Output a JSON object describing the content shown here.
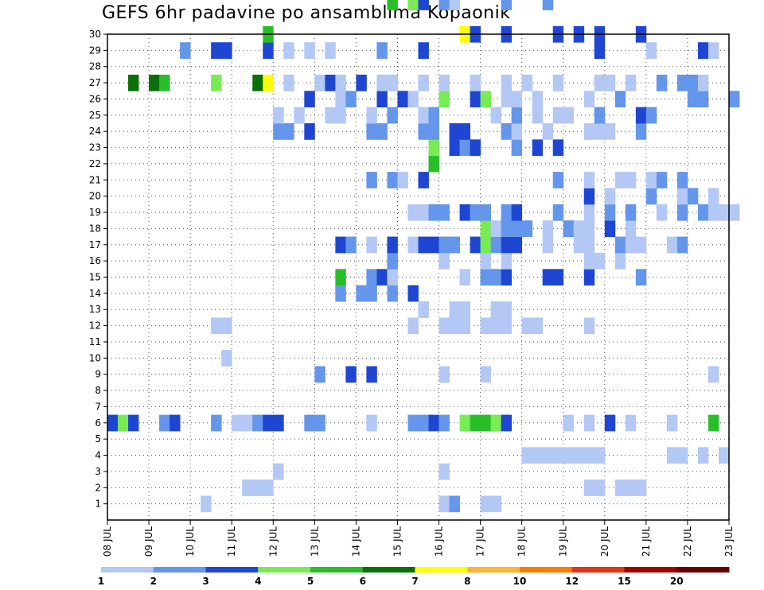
{
  "chart_data": {
    "type": "heatmap",
    "title": "GEFS 6hr padavine po ansamblima Kopaonik",
    "xlabel": "",
    "ylabel": "",
    "x_tick_labels": [
      "08 JUL",
      "09 JUL",
      "10 JUL",
      "11 JUL",
      "12 JUL",
      "13 JUL",
      "14 JUL",
      "15 JUL",
      "16 JUL",
      "17 JUL",
      "18 JUL",
      "19 JUL",
      "20 JUL",
      "21 JUL",
      "22 JUL",
      "23 JUL"
    ],
    "y_tick_labels": [
      "1",
      "2",
      "3",
      "4",
      "5",
      "6",
      "7",
      "8",
      "9",
      "10",
      "11",
      "12",
      "13",
      "14",
      "15",
      "16",
      "17",
      "18",
      "19",
      "20",
      "21",
      "22",
      "23",
      "24",
      "25",
      "26",
      "27",
      "28",
      "29",
      "30"
    ],
    "ylim": [
      0,
      30
    ],
    "x_days_range": [
      8,
      23
    ],
    "grid": "dotted",
    "colorbar": {
      "placement": "bottom",
      "levels": [
        1,
        2,
        3,
        4,
        5,
        6,
        7,
        8,
        10,
        12,
        15,
        20
      ],
      "tick_labels": [
        "1",
        "2",
        "3",
        "4",
        "5",
        "6",
        "7",
        "8",
        "10",
        "12",
        "15",
        "20"
      ],
      "colors": [
        "#b4c8f5",
        "#6496eb",
        "#1e46d2",
        "#78eb55",
        "#28be28",
        "#0a700a",
        "#ffff00",
        "#ffb432",
        "#ff7800",
        "#e63214",
        "#a00000",
        "#640000"
      ]
    },
    "cells": [
      [
        10.25,
        1,
        1
      ],
      [
        16,
        1,
        1
      ],
      [
        16.25,
        1,
        2
      ],
      [
        17,
        1,
        1
      ],
      [
        17.25,
        1,
        1
      ],
      [
        11.25,
        2,
        1
      ],
      [
        11.5,
        2,
        1
      ],
      [
        11.75,
        2,
        1
      ],
      [
        19.5,
        2,
        1
      ],
      [
        19.75,
        2,
        1
      ],
      [
        20.25,
        2,
        1
      ],
      [
        20.5,
        2,
        1
      ],
      [
        20.75,
        2,
        1
      ],
      [
        12,
        3,
        1
      ],
      [
        16,
        3,
        1
      ],
      [
        18,
        4,
        1
      ],
      [
        18.25,
        4,
        1
      ],
      [
        18.5,
        4,
        1
      ],
      [
        18.75,
        4,
        1
      ],
      [
        19,
        4,
        1
      ],
      [
        19.25,
        4,
        1
      ],
      [
        19.5,
        4,
        1
      ],
      [
        19.75,
        4,
        1
      ],
      [
        21.5,
        4,
        1
      ],
      [
        21.75,
        4,
        1
      ],
      [
        22.25,
        4,
        1
      ],
      [
        22.75,
        4,
        1
      ],
      [
        8,
        6,
        3
      ],
      [
        8.25,
        6,
        4
      ],
      [
        8.5,
        6,
        3
      ],
      [
        9.25,
        6,
        2
      ],
      [
        9.5,
        6,
        3
      ],
      [
        10.5,
        6,
        2
      ],
      [
        11,
        6,
        1
      ],
      [
        11.25,
        6,
        1
      ],
      [
        11.5,
        6,
        2
      ],
      [
        11.75,
        6,
        3
      ],
      [
        12,
        6,
        3
      ],
      [
        12.75,
        6,
        2
      ],
      [
        13,
        6,
        2
      ],
      [
        14.25,
        6,
        1
      ],
      [
        15.25,
        6,
        2
      ],
      [
        15.5,
        6,
        2
      ],
      [
        15.75,
        6,
        3
      ],
      [
        16,
        6,
        2
      ],
      [
        16.5,
        6,
        4
      ],
      [
        16.75,
        6,
        5
      ],
      [
        17,
        6,
        5
      ],
      [
        17.25,
        6,
        4
      ],
      [
        17.5,
        6,
        3
      ],
      [
        19,
        6,
        1
      ],
      [
        19.5,
        6,
        1
      ],
      [
        20,
        6,
        3
      ],
      [
        20.5,
        6,
        1
      ],
      [
        21.5,
        6,
        1
      ],
      [
        22.5,
        6,
        5
      ],
      [
        13,
        9,
        2
      ],
      [
        13.75,
        9,
        3
      ],
      [
        14.25,
        9,
        3
      ],
      [
        16,
        9,
        1
      ],
      [
        17,
        9,
        1
      ],
      [
        22.5,
        9,
        1
      ],
      [
        10.75,
        10,
        1
      ],
      [
        10.5,
        12,
        1
      ],
      [
        10.75,
        12,
        1
      ],
      [
        15.25,
        12,
        1
      ],
      [
        16,
        12,
        1
      ],
      [
        16.25,
        12,
        1
      ],
      [
        16.5,
        12,
        1
      ],
      [
        17,
        12,
        1
      ],
      [
        17.25,
        12,
        1
      ],
      [
        17.5,
        12,
        1
      ],
      [
        18,
        12,
        1
      ],
      [
        18.25,
        12,
        1
      ],
      [
        19.5,
        12,
        1
      ],
      [
        15.5,
        13,
        1
      ],
      [
        16.25,
        13,
        1
      ],
      [
        16.5,
        13,
        1
      ],
      [
        17.25,
        13,
        1
      ],
      [
        17.5,
        13,
        1
      ],
      [
        13.5,
        14,
        2
      ],
      [
        14,
        14,
        2
      ],
      [
        14.25,
        14,
        2
      ],
      [
        14.75,
        14,
        2
      ],
      [
        15.25,
        14,
        3
      ],
      [
        13.5,
        15,
        5
      ],
      [
        14.25,
        15,
        2
      ],
      [
        14.5,
        15,
        3
      ],
      [
        14.75,
        15,
        1
      ],
      [
        16.5,
        15,
        1
      ],
      [
        17,
        15,
        2
      ],
      [
        17.25,
        15,
        2
      ],
      [
        17.5,
        15,
        3
      ],
      [
        18.5,
        15,
        3
      ],
      [
        18.75,
        15,
        3
      ],
      [
        19.5,
        15,
        3
      ],
      [
        20.75,
        15,
        2
      ],
      [
        14.75,
        16,
        2
      ],
      [
        16,
        16,
        1
      ],
      [
        17,
        16,
        1
      ],
      [
        17.5,
        16,
        1
      ],
      [
        19.5,
        16,
        1
      ],
      [
        19.75,
        16,
        1
      ],
      [
        20.25,
        16,
        1
      ],
      [
        13.5,
        17,
        3
      ],
      [
        13.75,
        17,
        2
      ],
      [
        14.25,
        17,
        1
      ],
      [
        14.75,
        17,
        3
      ],
      [
        15.25,
        17,
        1
      ],
      [
        15.5,
        17,
        3
      ],
      [
        15.75,
        17,
        3
      ],
      [
        16,
        17,
        2
      ],
      [
        16.25,
        17,
        2
      ],
      [
        16.75,
        17,
        3
      ],
      [
        17,
        17,
        4
      ],
      [
        17.25,
        17,
        2
      ],
      [
        17.5,
        17,
        3
      ],
      [
        17.75,
        17,
        3
      ],
      [
        18.5,
        17,
        1
      ],
      [
        19.25,
        17,
        1
      ],
      [
        19.5,
        17,
        1
      ],
      [
        20.25,
        17,
        2
      ],
      [
        20.5,
        17,
        1
      ],
      [
        20.75,
        17,
        1
      ],
      [
        21.5,
        17,
        1
      ],
      [
        21.75,
        17,
        2
      ],
      [
        17,
        18,
        4
      ],
      [
        17.25,
        18,
        1
      ],
      [
        17.5,
        18,
        2
      ],
      [
        17.75,
        18,
        2
      ],
      [
        18,
        18,
        2
      ],
      [
        18.5,
        18,
        1
      ],
      [
        19,
        18,
        2
      ],
      [
        19.25,
        18,
        1
      ],
      [
        19.5,
        18,
        1
      ],
      [
        20,
        18,
        3
      ],
      [
        20.5,
        18,
        1
      ],
      [
        15.25,
        19,
        1
      ],
      [
        15.5,
        19,
        1
      ],
      [
        15.75,
        19,
        2
      ],
      [
        16,
        19,
        2
      ],
      [
        16.5,
        19,
        3
      ],
      [
        16.75,
        19,
        2
      ],
      [
        17,
        19,
        2
      ],
      [
        17.5,
        19,
        2
      ],
      [
        17.75,
        19,
        3
      ],
      [
        18.75,
        19,
        2
      ],
      [
        19.5,
        19,
        1
      ],
      [
        20,
        19,
        2
      ],
      [
        20.5,
        19,
        2
      ],
      [
        21.25,
        19,
        1
      ],
      [
        21.75,
        19,
        2
      ],
      [
        22.25,
        19,
        2
      ],
      [
        22.5,
        19,
        1
      ],
      [
        22.75,
        19,
        1
      ],
      [
        23,
        19,
        1
      ],
      [
        19.5,
        20,
        3
      ],
      [
        20,
        20,
        1
      ],
      [
        21,
        20,
        2
      ],
      [
        21.75,
        20,
        1
      ],
      [
        22,
        20,
        2
      ],
      [
        22.5,
        20,
        1
      ],
      [
        14.25,
        21,
        2
      ],
      [
        14.75,
        21,
        2
      ],
      [
        15,
        21,
        1
      ],
      [
        15.5,
        21,
        3
      ],
      [
        18.75,
        21,
        2
      ],
      [
        19.5,
        21,
        1
      ],
      [
        20.25,
        21,
        1
      ],
      [
        20.5,
        21,
        1
      ],
      [
        21,
        21,
        1
      ],
      [
        21.25,
        21,
        2
      ],
      [
        21.75,
        21,
        2
      ],
      [
        15.75,
        22,
        5
      ],
      [
        15.75,
        23,
        4
      ],
      [
        16.25,
        23,
        3
      ],
      [
        16.5,
        23,
        2
      ],
      [
        16.75,
        23,
        3
      ],
      [
        17.75,
        23,
        2
      ],
      [
        18.25,
        23,
        3
      ],
      [
        18.75,
        23,
        3
      ],
      [
        12,
        24,
        2
      ],
      [
        12.25,
        24,
        2
      ],
      [
        12.75,
        24,
        3
      ],
      [
        14.25,
        24,
        2
      ],
      [
        14.5,
        24,
        2
      ],
      [
        15.5,
        24,
        2
      ],
      [
        15.75,
        24,
        2
      ],
      [
        16.25,
        24,
        3
      ],
      [
        16.5,
        24,
        3
      ],
      [
        17.5,
        24,
        2
      ],
      [
        17.75,
        24,
        1
      ],
      [
        18.5,
        24,
        1
      ],
      [
        19.5,
        24,
        1
      ],
      [
        19.75,
        24,
        1
      ],
      [
        20,
        24,
        1
      ],
      [
        20.75,
        24,
        2
      ],
      [
        12,
        25,
        1
      ],
      [
        12.5,
        25,
        1
      ],
      [
        13.25,
        25,
        1
      ],
      [
        13.5,
        25,
        1
      ],
      [
        14.25,
        25,
        1
      ],
      [
        14.75,
        25,
        2
      ],
      [
        15.5,
        25,
        1
      ],
      [
        15.75,
        25,
        2
      ],
      [
        17.25,
        25,
        1
      ],
      [
        17.75,
        25,
        2
      ],
      [
        18.25,
        25,
        1
      ],
      [
        18.75,
        25,
        1
      ],
      [
        19,
        25,
        1
      ],
      [
        19.75,
        25,
        2
      ],
      [
        20.75,
        25,
        3
      ],
      [
        21,
        25,
        2
      ],
      [
        12.75,
        26,
        3
      ],
      [
        13.5,
        26,
        1
      ],
      [
        13.75,
        26,
        2
      ],
      [
        14.5,
        26,
        3
      ],
      [
        15,
        26,
        3
      ],
      [
        15.25,
        26,
        1
      ],
      [
        16,
        26,
        4
      ],
      [
        16.75,
        26,
        3
      ],
      [
        17,
        26,
        4
      ],
      [
        17.5,
        26,
        1
      ],
      [
        17.75,
        26,
        1
      ],
      [
        18.25,
        26,
        1
      ],
      [
        19.5,
        26,
        1
      ],
      [
        20.25,
        26,
        2
      ],
      [
        22,
        26,
        2
      ],
      [
        22.25,
        26,
        2
      ],
      [
        23,
        26,
        2
      ],
      [
        8.5,
        27,
        6
      ],
      [
        9,
        27,
        6
      ],
      [
        9.25,
        27,
        5
      ],
      [
        10.5,
        27,
        4
      ],
      [
        11.5,
        27,
        6
      ],
      [
        11.75,
        27,
        7
      ],
      [
        12.25,
        27,
        1
      ],
      [
        13,
        27,
        1
      ],
      [
        13.25,
        27,
        3
      ],
      [
        13.5,
        27,
        1
      ],
      [
        14,
        27,
        3
      ],
      [
        14.5,
        27,
        1
      ],
      [
        14.75,
        27,
        1
      ],
      [
        15.5,
        27,
        1
      ],
      [
        16,
        27,
        1
      ],
      [
        16.75,
        27,
        1
      ],
      [
        17.5,
        27,
        1
      ],
      [
        18,
        27,
        1
      ],
      [
        18.75,
        27,
        1
      ],
      [
        19.75,
        27,
        1
      ],
      [
        20,
        27,
        1
      ],
      [
        20.5,
        27,
        1
      ],
      [
        21.25,
        27,
        2
      ],
      [
        21.75,
        27,
        2
      ],
      [
        22,
        27,
        2
      ],
      [
        22.25,
        27,
        1
      ],
      [
        9.75,
        29,
        2
      ],
      [
        10.5,
        29,
        3
      ],
      [
        10.75,
        29,
        3
      ],
      [
        11.75,
        29,
        3
      ],
      [
        12.25,
        29,
        1
      ],
      [
        12.75,
        29,
        1
      ],
      [
        13.25,
        29,
        1
      ],
      [
        14.5,
        29,
        2
      ],
      [
        15.5,
        29,
        3
      ],
      [
        19.75,
        29,
        3
      ],
      [
        21,
        29,
        1
      ],
      [
        22.25,
        29,
        3
      ],
      [
        22.5,
        29,
        1
      ],
      [
        11.75,
        30,
        5
      ],
      [
        16.5,
        30,
        7
      ],
      [
        16.75,
        30,
        3
      ],
      [
        17.5,
        30,
        3
      ],
      [
        18.75,
        30,
        3
      ],
      [
        19.25,
        30,
        3
      ],
      [
        19.75,
        30,
        3
      ],
      [
        20.75,
        30,
        3
      ],
      [
        14.75,
        32,
        5
      ],
      [
        15.25,
        32,
        4
      ],
      [
        15.5,
        32,
        3
      ],
      [
        16,
        32,
        2
      ],
      [
        16.25,
        32,
        1
      ],
      [
        17.5,
        32,
        2
      ],
      [
        18.5,
        32,
        2
      ],
      [
        9.5,
        33,
        5
      ],
      [
        9.75,
        33,
        4
      ],
      [
        10.75,
        33,
        1
      ],
      [
        11,
        33,
        1
      ],
      [
        10.25,
        34,
        10
      ],
      [
        10.5,
        34,
        8
      ],
      [
        10.75,
        34,
        8
      ],
      [
        15,
        34,
        1
      ],
      [
        15.5,
        34,
        1
      ],
      [
        16,
        34,
        1
      ],
      [
        18.75,
        34,
        1
      ],
      [
        19.25,
        34,
        1
      ],
      [
        19.5,
        34,
        1
      ],
      [
        20.25,
        34,
        1
      ],
      [
        20.5,
        34,
        1
      ],
      [
        20.75,
        34,
        1
      ],
      [
        22.5,
        34,
        1
      ]
    ]
  }
}
